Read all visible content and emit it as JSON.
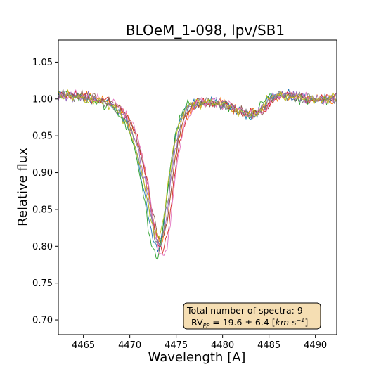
{
  "chart_data": {
    "type": "line",
    "title": "BLOeM_1-098, lpv/SB1",
    "xlabel": "Wavelength [A]",
    "ylabel": "Relative flux",
    "xlim": [
      4462.3,
      4492.3
    ],
    "ylim": [
      0.68,
      1.08
    ],
    "x_ticks": [
      4465,
      4470,
      4475,
      4480,
      4485,
      4490
    ],
    "y_ticks": [
      0.7,
      0.75,
      0.8,
      0.85,
      0.9,
      0.95,
      1.0,
      1.05
    ],
    "grid": false,
    "legend": "none",
    "annotation": {
      "line1": "Total number of spectra: 9",
      "rv_prefix": "RV",
      "rv_subscript": "PP",
      "rv_value": " = 19.6 ± 6.4 [",
      "rv_unit": "km s",
      "rv_exp": "−1",
      "rv_close": "]",
      "placement": "bottom-right",
      "box_color": "#f5deb3"
    },
    "profile": {
      "x": [
        4462.3,
        4464,
        4466,
        4467.5,
        4468.5,
        4469.5,
        4470.3,
        4471,
        4471.7,
        4472.3,
        4472.8,
        4473.3,
        4473.8,
        4474.3,
        4474.8,
        4475.3,
        4475.8,
        4476.5,
        4477.5,
        4478.5,
        4479.5,
        4480.5,
        4481.5,
        4482.5,
        4483.5,
        4484.3,
        4485,
        4485.8,
        4487,
        4488.5,
        4490,
        4492.3
      ],
      "y": [
        1.005,
        1.005,
        1.0,
        0.995,
        0.99,
        0.975,
        0.955,
        0.925,
        0.885,
        0.84,
        0.81,
        0.8,
        0.825,
        0.875,
        0.925,
        0.955,
        0.975,
        0.99,
        0.995,
        0.995,
        0.995,
        0.99,
        0.985,
        0.98,
        0.98,
        0.985,
        1.0,
        1.005,
        1.005,
        1.0,
        1.0,
        1.0
      ]
    },
    "series": [
      {
        "color": "#1f77b4",
        "shift": -0.25,
        "depth": -0.005
      },
      {
        "color": "#ff7f0e",
        "shift": 0.15,
        "depth": 0.005
      },
      {
        "color": "#2ca02c",
        "shift": -0.35,
        "depth": -0.015
      },
      {
        "color": "#d62728",
        "shift": 0.3,
        "depth": -0.01
      },
      {
        "color": "#9467bd",
        "shift": 0.0,
        "depth": 0.0
      },
      {
        "color": "#8c564b",
        "shift": 0.2,
        "depth": 0.01
      },
      {
        "color": "#e377c2",
        "shift": 0.35,
        "depth": -0.02
      },
      {
        "color": "#7f7f7f",
        "shift": -0.1,
        "depth": 0.0
      },
      {
        "color": "#bcbd22",
        "shift": -0.2,
        "depth": 0.012
      }
    ]
  }
}
